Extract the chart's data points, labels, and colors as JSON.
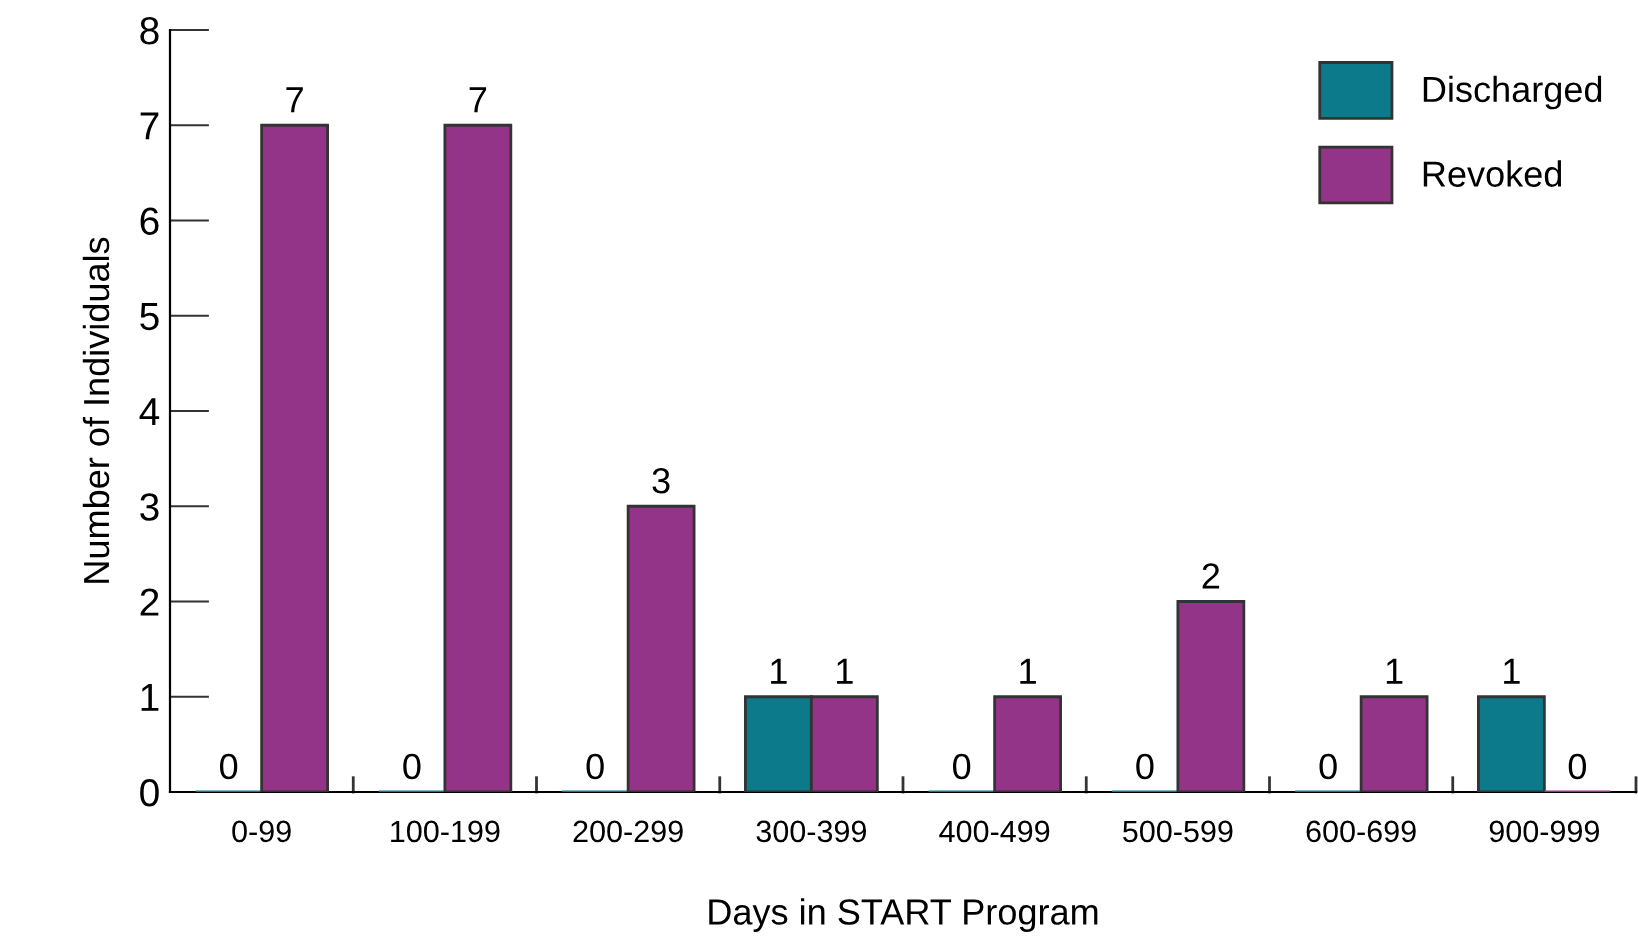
{
  "chart_data": {
    "type": "bar",
    "xlabel": "Days in START Program",
    "ylabel": "Number of Individuals",
    "categories": [
      "0-99",
      "100-199",
      "200-299",
      "300-399",
      "400-499",
      "500-599",
      "600-699",
      "900-999"
    ],
    "series": [
      {
        "name": "Discharged",
        "color": "#0c7a8a",
        "values": [
          0,
          0,
          0,
          1,
          0,
          0,
          0,
          1
        ]
      },
      {
        "name": "Revoked",
        "color": "#943489",
        "values": [
          7,
          7,
          3,
          1,
          1,
          2,
          1,
          0
        ]
      }
    ],
    "ylim": [
      0,
      8
    ],
    "yticks": [
      0,
      1,
      2,
      3,
      4,
      5,
      6,
      7,
      8
    ],
    "data_labels": true,
    "legend": "top right",
    "grid": false
  }
}
